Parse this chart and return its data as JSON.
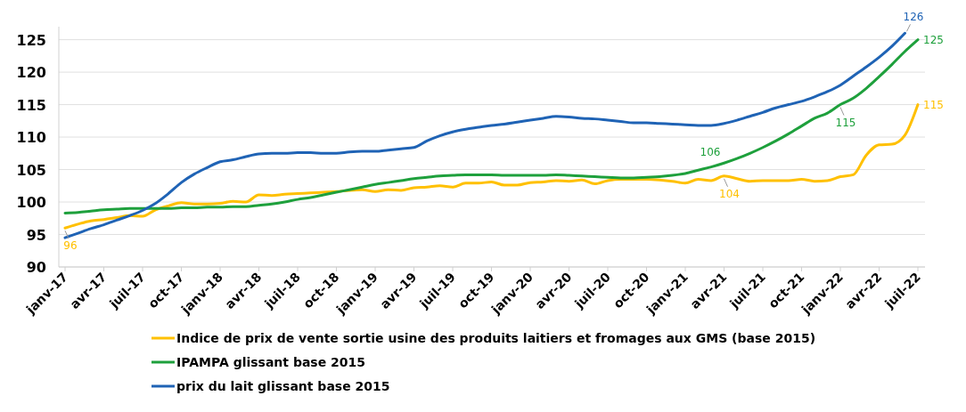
{
  "chart_data": {
    "type": "line",
    "categories": [
      "janv-17",
      null,
      null,
      "avr-17",
      null,
      null,
      "juil-17",
      null,
      null,
      "oct-17",
      null,
      null,
      "janv-18",
      null,
      null,
      "avr-18",
      null,
      null,
      "juil-18",
      null,
      null,
      "oct-18",
      null,
      null,
      "janv-19",
      null,
      null,
      "avr-19",
      null,
      null,
      "juil-19",
      null,
      null,
      "oct-19",
      null,
      null,
      "janv-20",
      null,
      null,
      "avr-20",
      null,
      null,
      "juil-20",
      null,
      null,
      "oct-20",
      null,
      null,
      "janv-21",
      null,
      null,
      "avr-21",
      null,
      null,
      "juil-21",
      null,
      null,
      "oct-21",
      null,
      null,
      "janv-22",
      null,
      null,
      "avr-22",
      null,
      null,
      "juil-22"
    ],
    "series": [
      {
        "name": "Indice de prix de vente sortie usine des produits laitiers et fromages aux GMS (base 2015)",
        "color": "#ffc000",
        "values": [
          96.0,
          96.6,
          97.1,
          97.3,
          97.6,
          97.9,
          97.8,
          98.8,
          99.4,
          99.9,
          99.7,
          99.7,
          99.8,
          100.1,
          100.0,
          101.1,
          101.0,
          101.2,
          101.3,
          101.4,
          101.5,
          101.6,
          101.8,
          101.9,
          101.6,
          101.9,
          101.8,
          102.2,
          102.3,
          102.5,
          102.3,
          102.9,
          102.9,
          103.1,
          102.6,
          102.6,
          103.0,
          103.1,
          103.3,
          103.2,
          103.4,
          102.8,
          103.3,
          103.5,
          103.5,
          103.5,
          103.4,
          103.2,
          102.9,
          103.5,
          103.3,
          104.0,
          103.6,
          103.2,
          103.3,
          103.3,
          103.3,
          103.5,
          103.2,
          103.3,
          103.9,
          104.2,
          107.2,
          108.8,
          108.9,
          110.3,
          115.0
        ],
        "value_labels": [
          "96",
          null,
          null,
          null,
          null,
          null,
          null,
          null,
          null,
          null,
          null,
          null,
          null,
          null,
          null,
          null,
          null,
          null,
          null,
          null,
          null,
          null,
          null,
          null,
          null,
          null,
          null,
          null,
          null,
          null,
          null,
          null,
          null,
          null,
          null,
          null,
          null,
          null,
          null,
          null,
          null,
          null,
          null,
          null,
          null,
          null,
          null,
          null,
          null,
          null,
          null,
          "104",
          null,
          null,
          null,
          null,
          null,
          null,
          null,
          null,
          null,
          null,
          null,
          null,
          null,
          null,
          "115"
        ]
      },
      {
        "name": "IPAMPA glissant base 2015",
        "color": "#1ea03c",
        "values": [
          98.3,
          98.4,
          98.6,
          98.8,
          98.9,
          99.0,
          99.0,
          99.0,
          99.0,
          99.1,
          99.1,
          99.2,
          99.2,
          99.3,
          99.3,
          99.5,
          99.7,
          100.0,
          100.4,
          100.7,
          101.1,
          101.5,
          101.9,
          102.3,
          102.7,
          103.0,
          103.3,
          103.6,
          103.8,
          104.0,
          104.1,
          104.2,
          104.2,
          104.2,
          104.1,
          104.1,
          104.1,
          104.1,
          104.2,
          104.1,
          104.0,
          103.9,
          103.8,
          103.7,
          103.7,
          103.8,
          103.9,
          104.1,
          104.4,
          104.9,
          105.4,
          106.0,
          106.7,
          107.5,
          108.4,
          109.4,
          110.5,
          111.7,
          112.9,
          113.7,
          115.0,
          116.0,
          117.5,
          119.3,
          121.2,
          123.2,
          125.0
        ],
        "value_labels": [
          null,
          null,
          null,
          null,
          null,
          null,
          null,
          null,
          null,
          null,
          null,
          null,
          null,
          null,
          null,
          null,
          null,
          null,
          null,
          null,
          null,
          null,
          null,
          null,
          null,
          null,
          null,
          null,
          null,
          null,
          null,
          null,
          null,
          null,
          null,
          null,
          null,
          null,
          null,
          null,
          null,
          null,
          null,
          null,
          null,
          null,
          null,
          null,
          null,
          null,
          null,
          "106",
          null,
          null,
          null,
          null,
          null,
          null,
          null,
          null,
          "115",
          null,
          null,
          null,
          null,
          null,
          "125"
        ]
      },
      {
        "name": "prix du lait glissant base 2015",
        "color": "#1f63b5",
        "values": [
          94.5,
          95.2,
          95.9,
          96.5,
          97.2,
          97.9,
          98.7,
          99.8,
          101.3,
          103.0,
          104.3,
          105.3,
          106.2,
          106.5,
          107.0,
          107.4,
          107.5,
          107.5,
          107.6,
          107.6,
          107.5,
          107.5,
          107.7,
          107.8,
          107.8,
          108.0,
          108.2,
          108.4,
          109.4,
          110.2,
          110.8,
          111.2,
          111.5,
          111.8,
          112.0,
          112.3,
          112.6,
          112.9,
          113.2,
          113.1,
          112.9,
          112.8,
          112.6,
          112.4,
          112.2,
          112.2,
          112.1,
          112.0,
          111.9,
          111.8,
          111.8,
          112.1,
          112.6,
          113.2,
          113.8,
          114.5,
          115.0,
          115.5,
          116.2,
          117.0,
          118.0,
          119.4,
          120.8,
          122.3,
          124.0,
          126.0,
          null
        ],
        "value_labels": [
          null,
          null,
          null,
          null,
          null,
          null,
          null,
          null,
          null,
          null,
          null,
          null,
          null,
          null,
          null,
          null,
          null,
          null,
          null,
          null,
          null,
          null,
          null,
          null,
          null,
          null,
          null,
          null,
          null,
          null,
          null,
          null,
          null,
          null,
          null,
          null,
          null,
          null,
          null,
          null,
          null,
          null,
          null,
          null,
          null,
          null,
          null,
          null,
          null,
          null,
          null,
          null,
          null,
          null,
          null,
          null,
          null,
          null,
          null,
          null,
          null,
          null,
          null,
          null,
          null,
          "126",
          null
        ]
      }
    ],
    "ylim": [
      90,
      127
    ],
    "yticks": [
      90,
      95,
      100,
      105,
      110,
      115,
      120,
      125
    ],
    "grid": "y",
    "legend": "bottom"
  }
}
